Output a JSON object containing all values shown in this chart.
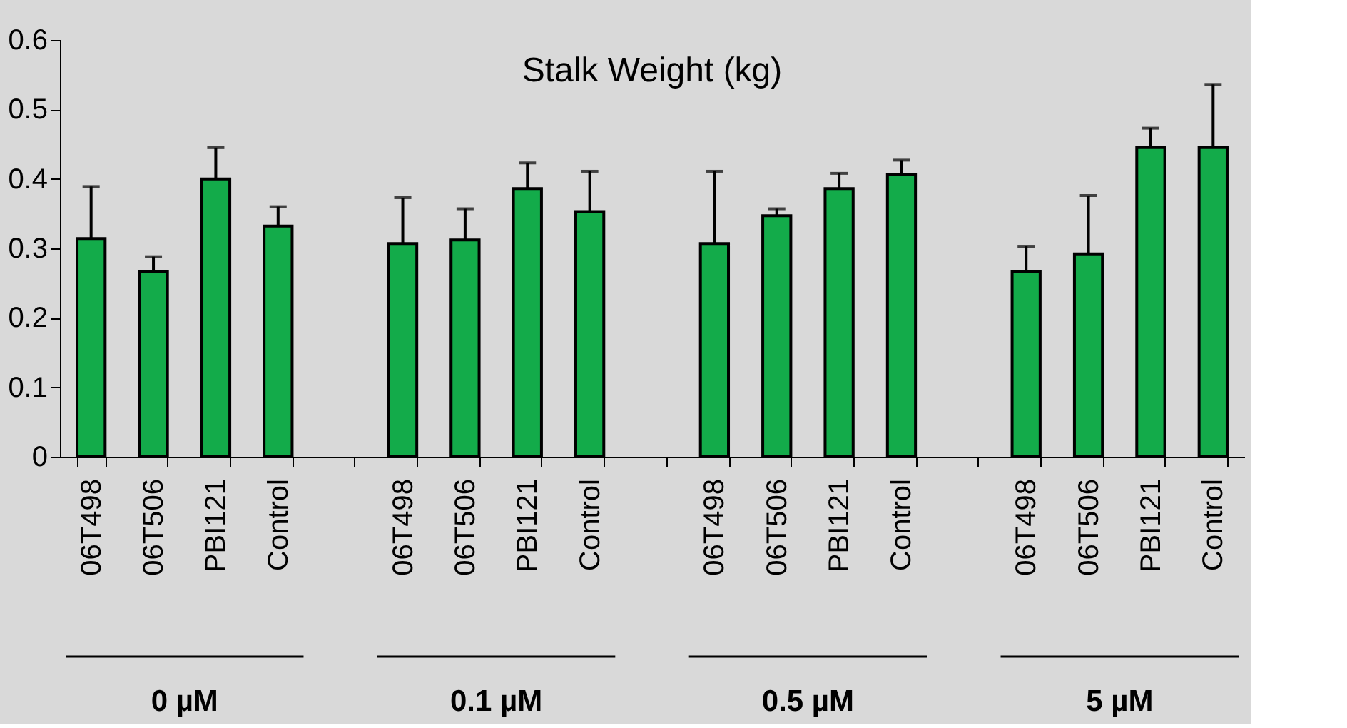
{
  "chart_data": {
    "type": "bar",
    "title": "Stalk Weight (kg)",
    "categories": [
      "06T498",
      "06T506",
      "PBI121",
      "Control",
      null,
      "06T498",
      "06T506",
      "PBI121",
      "Control",
      null,
      "06T498",
      "06T506",
      "PBI121",
      "Control",
      null,
      "06T498",
      "06T506",
      "PBI121",
      "Control"
    ],
    "values": [
      0.314,
      0.267,
      0.4,
      0.332,
      null,
      0.307,
      0.312,
      0.386,
      0.353,
      null,
      0.307,
      0.347,
      0.386,
      0.406,
      null,
      0.267,
      0.292,
      0.445,
      0.445
    ],
    "errors": [
      [
        0.314,
        0.389
      ],
      [
        0.267,
        0.288
      ],
      [
        0.4,
        0.445
      ],
      [
        0.332,
        0.36
      ],
      null,
      [
        0.307,
        0.373
      ],
      [
        0.312,
        0.357
      ],
      [
        0.386,
        0.423
      ],
      [
        0.353,
        0.411
      ],
      null,
      [
        0.307,
        0.411
      ],
      [
        0.347,
        0.357
      ],
      [
        0.386,
        0.408
      ],
      [
        0.406,
        0.427
      ],
      null,
      [
        0.267,
        0.303
      ],
      [
        0.292,
        0.376
      ],
      [
        0.445,
        0.473
      ],
      [
        0.445,
        0.536
      ]
    ],
    "color": "#13ab4a",
    "ylim": [
      0,
      0.6
    ],
    "yticks": [
      0,
      0.1,
      0.2,
      0.3,
      0.4,
      0.5,
      0.6
    ],
    "annotations": [
      "0 µM",
      "0.1 µM",
      "0.5 µM",
      "5 µM"
    ]
  }
}
